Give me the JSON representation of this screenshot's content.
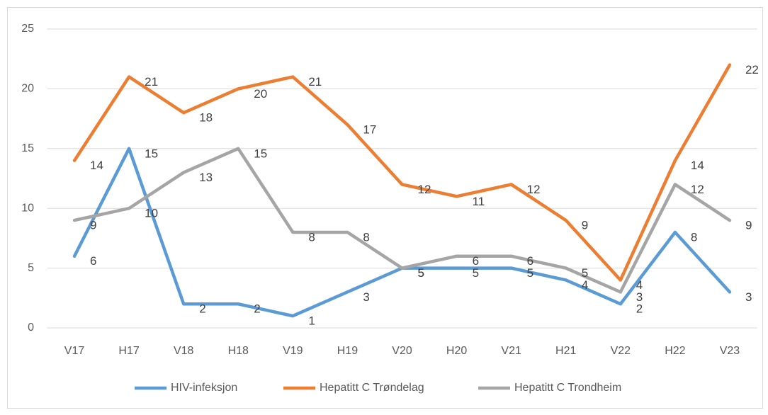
{
  "chart_data": {
    "type": "line",
    "categories": [
      "V17",
      "H17",
      "V18",
      "H18",
      "V19",
      "H19",
      "V20",
      "H20",
      "V21",
      "H21",
      "V22",
      "H22",
      "V23"
    ],
    "series": [
      {
        "name": "HIV-infeksjon",
        "color": "#5b9bd5",
        "values": [
          6,
          15,
          2,
          2,
          1,
          3,
          5,
          5,
          5,
          4,
          2,
          8,
          3
        ]
      },
      {
        "name": "Hepatitt C Trøndelag",
        "color": "#ed7d31",
        "values": [
          14,
          21,
          18,
          20,
          21,
          17,
          12,
          11,
          12,
          9,
          4,
          14,
          22
        ]
      },
      {
        "name": "Hepatitt C Trondheim",
        "color": "#a5a5a5",
        "values": [
          9,
          10,
          13,
          15,
          8,
          8,
          5,
          6,
          6,
          5,
          3,
          12,
          9
        ]
      }
    ],
    "ylim": [
      0,
      25
    ],
    "yticks": [
      0,
      5,
      10,
      15,
      20,
      25
    ],
    "grid": true,
    "legend": "bottom"
  }
}
